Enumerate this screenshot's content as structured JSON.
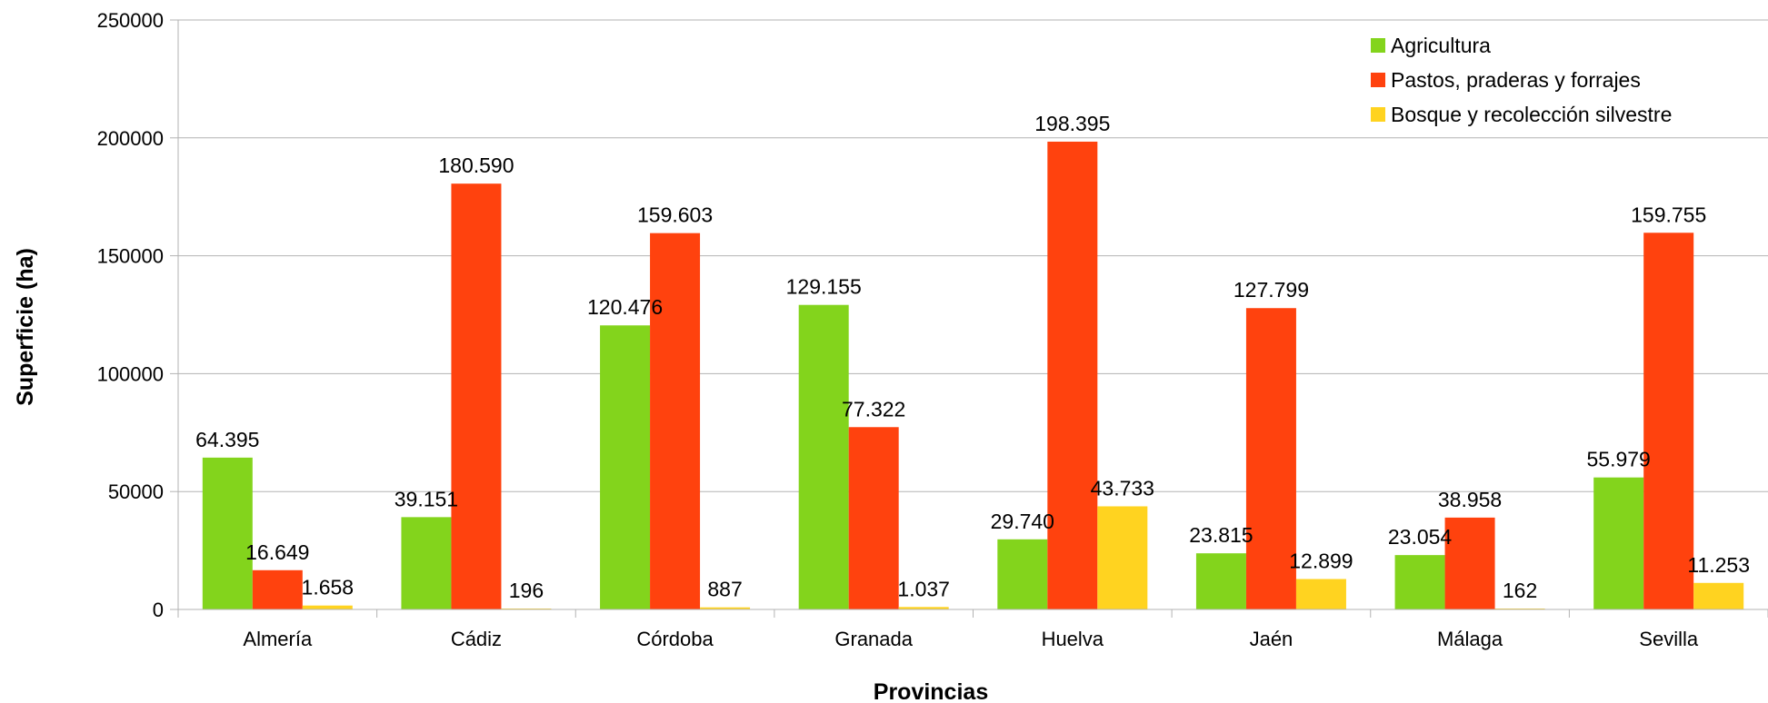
{
  "chart_data": {
    "type": "bar",
    "xlabel": "Provincias",
    "ylabel": "Superficie (ha)",
    "ylim": [
      0,
      250000
    ],
    "yticks": [
      0,
      50000,
      100000,
      150000,
      200000,
      250000
    ],
    "ytick_labels": [
      "0",
      "50000",
      "100000",
      "150000",
      "200000",
      "250000"
    ],
    "grid": true,
    "legend": "top-right",
    "categories": [
      "Almería",
      "Cádiz",
      "Córdoba",
      "Granada",
      "Huelva",
      "Jaén",
      "Málaga",
      "Sevilla"
    ],
    "series": [
      {
        "name": "Agricultura",
        "color": "#83d41c",
        "values": [
          64395,
          39151,
          120476,
          129155,
          29740,
          23815,
          23054,
          55979
        ],
        "labels": [
          "64.395",
          "39.151",
          "120.476",
          "129.155",
          "29.740",
          "23.815",
          "23.054",
          "55.979"
        ]
      },
      {
        "name": "Pastos, praderas y forrajes",
        "color": "#ff420e",
        "values": [
          16649,
          180590,
          159603,
          77322,
          198395,
          127799,
          38958,
          159755
        ],
        "labels": [
          "16.649",
          "180.590",
          "159.603",
          "77.322",
          "198.395",
          "127.799",
          "38.958",
          "159.755"
        ]
      },
      {
        "name": "Bosque y recolección silvestre",
        "color": "#ffd320",
        "values": [
          1658,
          196,
          887,
          1037,
          43733,
          12899,
          162,
          11253
        ],
        "labels": [
          "1.658",
          "196",
          "887",
          "1.037",
          "43.733",
          "12.899",
          "162",
          "11.253"
        ]
      }
    ]
  }
}
